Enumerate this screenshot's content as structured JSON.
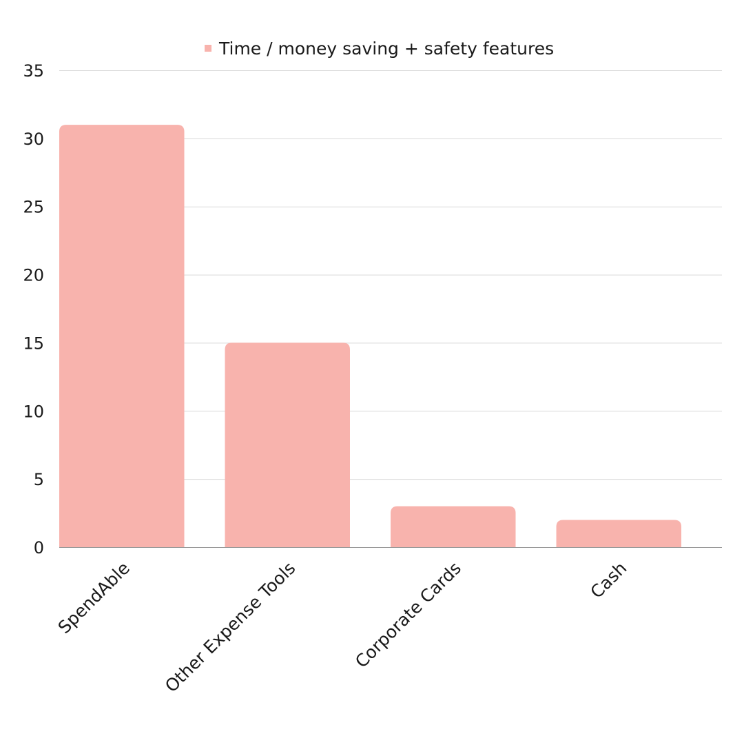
{
  "chart_data": {
    "type": "bar",
    "categories": [
      "SpendAble",
      "Other Expense Tools",
      "Corporate Cards",
      "Cash"
    ],
    "series": [
      {
        "name": "Time / money saving + safety features",
        "values": [
          31,
          15,
          3,
          2
        ],
        "color": "#f8b3ad"
      }
    ],
    "title": "",
    "xlabel": "",
    "ylabel": "",
    "ylim": [
      0,
      35
    ],
    "yticks": [
      0,
      5,
      10,
      15,
      20,
      25,
      30,
      35
    ],
    "grid": true,
    "legend_position": "top-center",
    "colors": {
      "bar": "#f8b3ad",
      "grid": "#d9d9d9",
      "axis": "#9a9a9a",
      "text": "#1a1a1a"
    }
  }
}
